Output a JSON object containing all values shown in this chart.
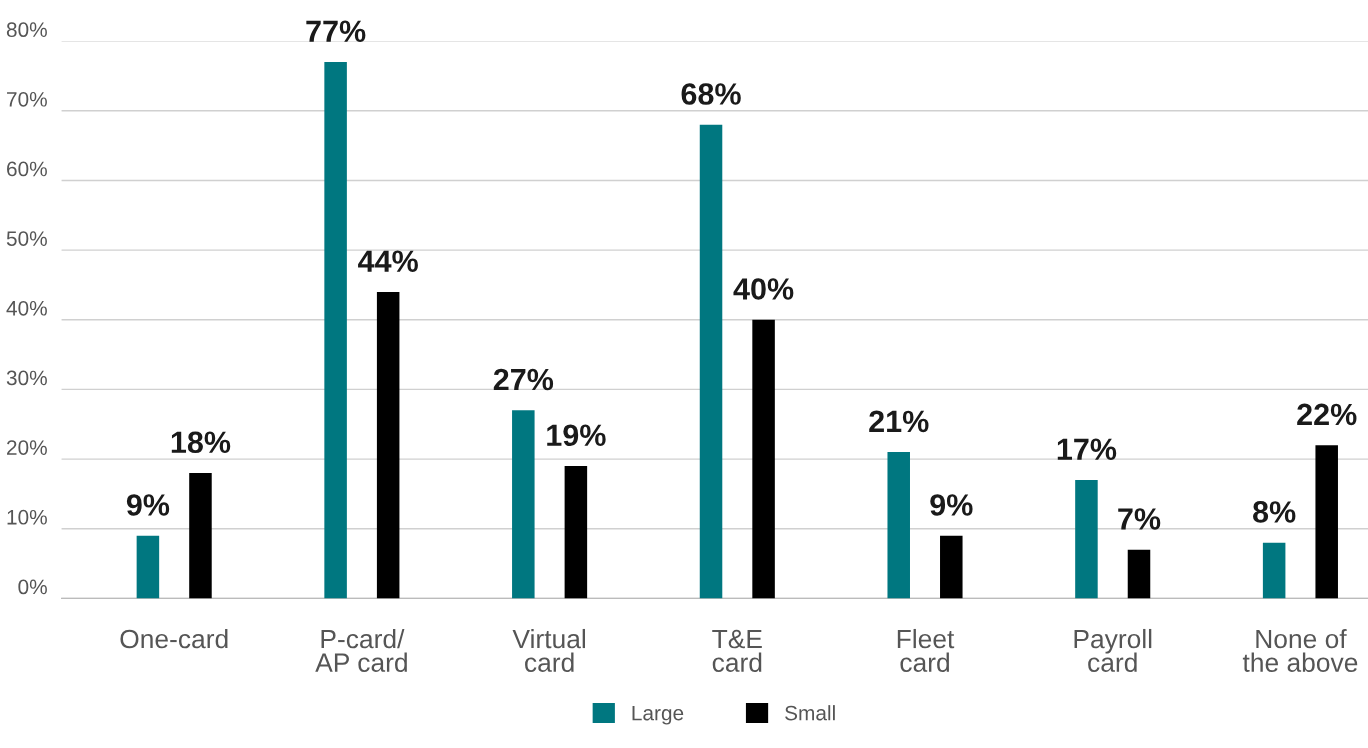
{
  "chart_data": {
    "type": "bar",
    "categories": [
      "One-card",
      "P-card/\nAP card",
      "Virtual\ncard",
      "T&E\ncard",
      "Fleet\ncard",
      "Payroll\ncard",
      "None of\nthe above"
    ],
    "series": [
      {
        "name": "Large",
        "color": "#007780",
        "values": [
          9,
          77,
          27,
          68,
          21,
          17,
          8
        ],
        "value_labels": [
          "9%",
          "77%",
          "27%",
          "68%",
          "21%",
          "17%",
          "8%"
        ]
      },
      {
        "name": "Small",
        "color": "#000000",
        "values": [
          18,
          44,
          19,
          40,
          9,
          7,
          22
        ],
        "value_labels": [
          "18%",
          "44%",
          "19%",
          "40%",
          "9%",
          "7%",
          "22%"
        ]
      }
    ],
    "ylim": [
      0,
      80
    ],
    "yticks": [
      {
        "value": 0,
        "label": "0%"
      },
      {
        "value": 10,
        "label": "10%"
      },
      {
        "value": 20,
        "label": "20%"
      },
      {
        "value": 30,
        "label": "30%"
      },
      {
        "value": 40,
        "label": "40%"
      },
      {
        "value": 50,
        "label": "50%"
      },
      {
        "value": 60,
        "label": "60%"
      },
      {
        "value": 70,
        "label": "70%"
      },
      {
        "value": 80,
        "label": "80%"
      }
    ],
    "grid": "y",
    "legend": "bottom"
  }
}
